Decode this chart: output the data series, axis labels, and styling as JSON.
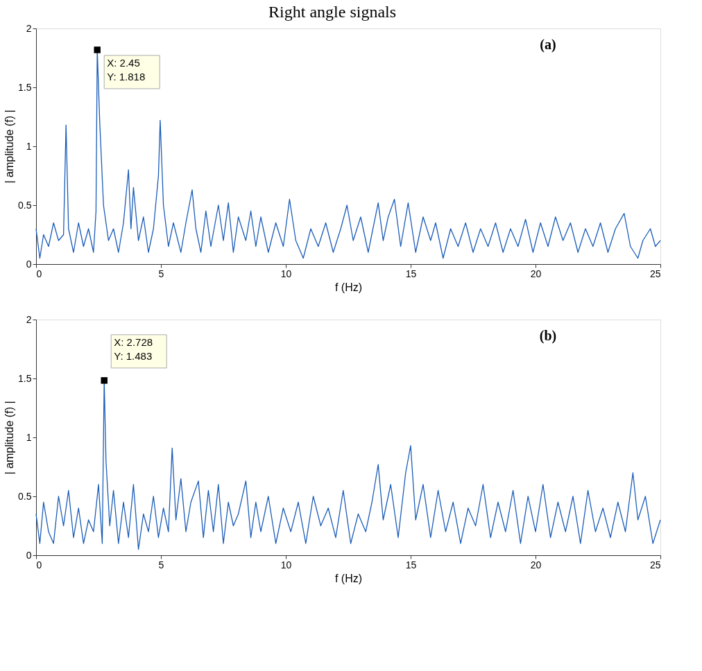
{
  "chart_data": [
    {
      "type": "line",
      "title": "Right angle signals",
      "xlabel": "f (Hz)",
      "ylabel": "| amplitude (f) |",
      "xlim": [
        0,
        25
      ],
      "ylim": [
        0,
        2
      ],
      "xticks": [
        0,
        5,
        10,
        15,
        20,
        25
      ],
      "yticks": [
        0,
        0.5,
        1,
        1.5,
        2
      ],
      "grid": false,
      "marker": "none",
      "line_style": "solid",
      "annotations": [
        "(a)",
        {
          "text": "X: 2.45\nY: 1.818",
          "x": 2.45,
          "y": 1.818
        }
      ],
      "series": [
        {
          "color": "#1a5cb8",
          "x": [
            0,
            0.15,
            0.3,
            0.5,
            0.7,
            0.9,
            1.1,
            1.2,
            1.3,
            1.5,
            1.7,
            1.9,
            2.1,
            2.3,
            2.4,
            2.45,
            2.55,
            2.7,
            2.9,
            3.1,
            3.3,
            3.5,
            3.7,
            3.8,
            3.9,
            4.1,
            4.3,
            4.5,
            4.7,
            4.9,
            4.97,
            5.1,
            5.3,
            5.5,
            5.8,
            6.0,
            6.25,
            6.4,
            6.6,
            6.8,
            7.0,
            7.3,
            7.5,
            7.7,
            7.9,
            8.1,
            8.4,
            8.6,
            8.8,
            9.0,
            9.3,
            9.6,
            9.9,
            10.15,
            10.4,
            10.7,
            11.0,
            11.3,
            11.6,
            11.9,
            12.2,
            12.45,
            12.7,
            13.0,
            13.3,
            13.7,
            13.9,
            14.1,
            14.35,
            14.6,
            14.9,
            15.2,
            15.5,
            15.8,
            16.0,
            16.3,
            16.6,
            16.9,
            17.2,
            17.5,
            17.8,
            18.1,
            18.4,
            18.7,
            19.0,
            19.3,
            19.6,
            19.9,
            20.2,
            20.5,
            20.8,
            21.1,
            21.4,
            21.7,
            22.0,
            22.3,
            22.6,
            22.9,
            23.2,
            23.55,
            23.8,
            24.1,
            24.3,
            24.6,
            24.8,
            25
          ],
          "values": [
            0.3,
            0.05,
            0.25,
            0.15,
            0.35,
            0.2,
            0.25,
            1.18,
            0.3,
            0.1,
            0.35,
            0.15,
            0.3,
            0.1,
            0.45,
            1.818,
            1.2,
            0.5,
            0.2,
            0.3,
            0.1,
            0.35,
            0.8,
            0.3,
            0.65,
            0.2,
            0.4,
            0.1,
            0.3,
            0.75,
            1.22,
            0.5,
            0.15,
            0.35,
            0.1,
            0.35,
            0.63,
            0.3,
            0.1,
            0.45,
            0.15,
            0.5,
            0.2,
            0.52,
            0.1,
            0.4,
            0.2,
            0.45,
            0.15,
            0.4,
            0.1,
            0.35,
            0.15,
            0.55,
            0.2,
            0.05,
            0.3,
            0.15,
            0.35,
            0.1,
            0.3,
            0.5,
            0.2,
            0.4,
            0.1,
            0.52,
            0.2,
            0.4,
            0.55,
            0.15,
            0.52,
            0.1,
            0.4,
            0.2,
            0.35,
            0.05,
            0.3,
            0.15,
            0.35,
            0.1,
            0.3,
            0.15,
            0.35,
            0.1,
            0.3,
            0.15,
            0.38,
            0.1,
            0.35,
            0.15,
            0.4,
            0.2,
            0.35,
            0.1,
            0.3,
            0.15,
            0.35,
            0.1,
            0.3,
            0.43,
            0.15,
            0.05,
            0.2,
            0.3,
            0.15,
            0.2
          ]
        }
      ]
    },
    {
      "type": "line",
      "xlabel": "f (Hz)",
      "ylabel": "| amplitude (f) |",
      "xlim": [
        0,
        25
      ],
      "ylim": [
        0,
        2
      ],
      "xticks": [
        0,
        5,
        10,
        15,
        20,
        25
      ],
      "yticks": [
        0,
        0.5,
        1,
        1.5,
        2
      ],
      "grid": false,
      "marker": "none",
      "line_style": "solid",
      "annotations": [
        "(b)",
        {
          "text": "X: 2.728\nY: 1.483",
          "x": 2.728,
          "y": 1.483
        }
      ],
      "series": [
        {
          "color": "#1a5cb8",
          "x": [
            0,
            0.15,
            0.3,
            0.5,
            0.7,
            0.9,
            1.1,
            1.3,
            1.5,
            1.7,
            1.9,
            2.1,
            2.3,
            2.5,
            2.65,
            2.728,
            2.8,
            2.95,
            3.1,
            3.3,
            3.5,
            3.7,
            3.9,
            4.1,
            4.3,
            4.5,
            4.7,
            4.9,
            5.1,
            5.3,
            5.45,
            5.6,
            5.8,
            6.0,
            6.2,
            6.5,
            6.7,
            6.9,
            7.1,
            7.3,
            7.5,
            7.7,
            7.9,
            8.1,
            8.4,
            8.6,
            8.8,
            9.0,
            9.3,
            9.6,
            9.9,
            10.2,
            10.5,
            10.8,
            11.1,
            11.4,
            11.7,
            12.0,
            12.3,
            12.6,
            12.9,
            13.2,
            13.45,
            13.7,
            13.9,
            14.2,
            14.5,
            14.8,
            15.0,
            15.2,
            15.5,
            15.8,
            16.1,
            16.4,
            16.7,
            17.0,
            17.3,
            17.6,
            17.9,
            18.2,
            18.5,
            18.8,
            19.1,
            19.4,
            19.7,
            20.0,
            20.3,
            20.6,
            20.9,
            21.2,
            21.5,
            21.8,
            22.1,
            22.4,
            22.7,
            23.0,
            23.3,
            23.6,
            23.9,
            24.1,
            24.4,
            24.7,
            25
          ],
          "values": [
            0.35,
            0.1,
            0.45,
            0.2,
            0.1,
            0.5,
            0.25,
            0.55,
            0.15,
            0.4,
            0.1,
            0.3,
            0.2,
            0.6,
            0.1,
            1.483,
            0.8,
            0.25,
            0.55,
            0.1,
            0.45,
            0.15,
            0.6,
            0.05,
            0.35,
            0.2,
            0.5,
            0.15,
            0.4,
            0.2,
            0.91,
            0.3,
            0.65,
            0.2,
            0.45,
            0.63,
            0.15,
            0.55,
            0.2,
            0.6,
            0.1,
            0.45,
            0.25,
            0.35,
            0.63,
            0.15,
            0.45,
            0.2,
            0.5,
            0.1,
            0.4,
            0.2,
            0.45,
            0.1,
            0.5,
            0.25,
            0.4,
            0.15,
            0.55,
            0.1,
            0.35,
            0.2,
            0.45,
            0.77,
            0.3,
            0.6,
            0.15,
            0.7,
            0.93,
            0.3,
            0.6,
            0.15,
            0.55,
            0.2,
            0.45,
            0.1,
            0.4,
            0.25,
            0.6,
            0.15,
            0.45,
            0.2,
            0.55,
            0.1,
            0.5,
            0.2,
            0.6,
            0.15,
            0.45,
            0.2,
            0.5,
            0.1,
            0.55,
            0.2,
            0.4,
            0.15,
            0.45,
            0.2,
            0.7,
            0.3,
            0.5,
            0.1,
            0.3
          ]
        }
      ]
    }
  ]
}
